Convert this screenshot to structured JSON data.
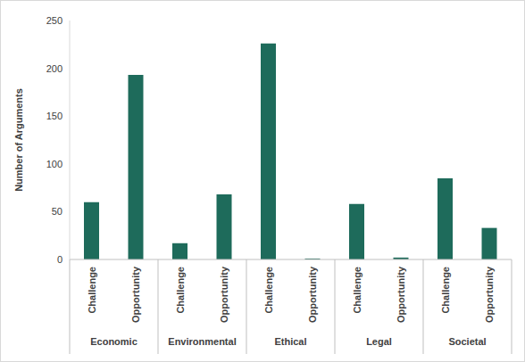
{
  "chart_data": {
    "type": "bar",
    "y_label": "Number of Arguments",
    "categories": [
      "Challenge",
      "Opportunity",
      "Challenge",
      "Opportunity",
      "Challenge",
      "Opportunity",
      "Challenge",
      "Opportunity",
      "Challenge",
      "Opportunity"
    ],
    "groups": [
      "Economic",
      "Environmental",
      "Ethical",
      "Legal",
      "Societal"
    ],
    "values": [
      60,
      193,
      17,
      68,
      226,
      1,
      58,
      2,
      85,
      33
    ],
    "color": "#1e6b5b",
    "ylim": [
      0,
      250
    ],
    "yticks": [
      0,
      50,
      100,
      150,
      200,
      250
    ],
    "grid": false
  }
}
